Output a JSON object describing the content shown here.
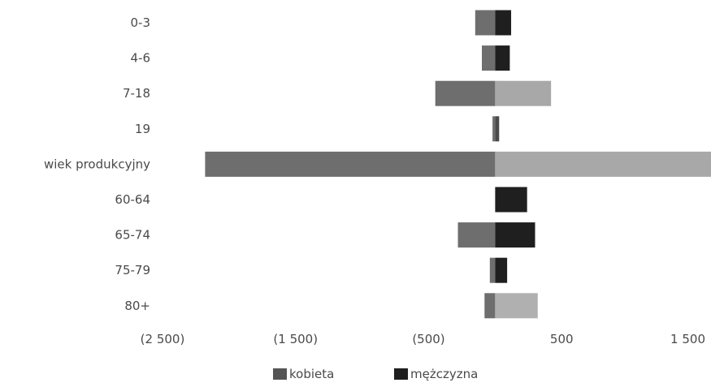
{
  "chart_data": {
    "type": "bar",
    "orientation": "horizontal",
    "stacked": true,
    "categories": [
      "0-3",
      "4-6",
      "7-18",
      "19",
      "wiek produkcyjny",
      "60-64",
      "65-74",
      "75-79",
      "80+"
    ],
    "series": [
      {
        "name": "kobieta",
        "color": "#6e6e6e",
        "values": [
          -150,
          -100,
          -450,
          -20,
          -2180,
          0,
          -280,
          -40,
          -80
        ]
      },
      {
        "name": "mężczyzna",
        "color": "#1f1f1f",
        "values": [
          120,
          110,
          420,
          30,
          1750,
          240,
          300,
          90,
          320
        ]
      }
    ],
    "second_series_colors_by_category": [
      "#1f1f1f",
      "#1f1f1f",
      "#a8a8a8",
      "#4a4a4a",
      "#a8a8a8",
      "#1f1f1f",
      "#1f1f1f",
      "#1f1f1f",
      "#b0b0b0"
    ],
    "xlim": [
      -2500,
      1500
    ],
    "xticks": [
      -2500,
      -1500,
      -500,
      500,
      1500
    ],
    "xtick_labels": [
      "(2 500)",
      "(1 500)",
      "(500)",
      "500",
      "1 500"
    ],
    "grid": false,
    "legend_position": "bottom"
  },
  "legend": [
    {
      "label": "kobieta",
      "color": "#555555"
    },
    {
      "label": "mężczyzna",
      "color": "#1f1f1f"
    }
  ]
}
